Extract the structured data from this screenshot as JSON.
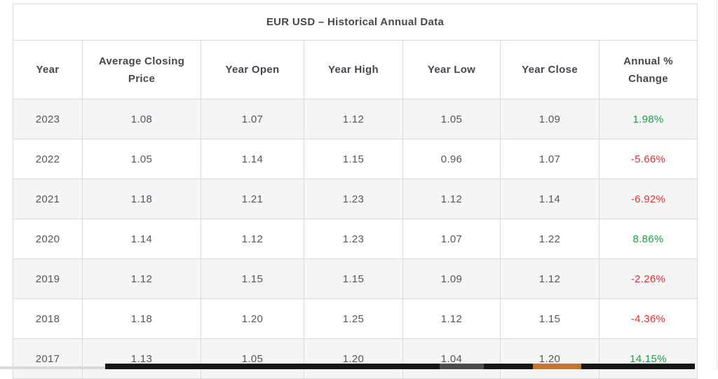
{
  "colors": {
    "positive": "#1e9e44",
    "negative": "#e03434",
    "header_text": "#47484d",
    "cell_text": "#56575c",
    "border": "#dadada",
    "row_shade": "#f5f5f6",
    "bar_black": "#161616",
    "bar_gray": "#4b4b4b",
    "bar_orange": "#c0762c",
    "bar_light": "#d9d9d9"
  },
  "table": {
    "title": "EUR USD – Historical Annual Data",
    "headers": [
      "Year",
      "Average Closing Price",
      "Year Open",
      "Year High",
      "Year Low",
      "Year Close",
      "Annual % Change"
    ],
    "rows": [
      {
        "year": "2023",
        "cells": [
          "1.08",
          "1.07",
          "1.12",
          "1.05",
          "1.09"
        ],
        "change": "1.98%",
        "trend": "up"
      },
      {
        "year": "2022",
        "cells": [
          "1.05",
          "1.14",
          "1.15",
          "0.96",
          "1.07"
        ],
        "change": "-5.66%",
        "trend": "down"
      },
      {
        "year": "2021",
        "cells": [
          "1.18",
          "1.21",
          "1.23",
          "1.12",
          "1.14"
        ],
        "change": "-6.92%",
        "trend": "down"
      },
      {
        "year": "2020",
        "cells": [
          "1.14",
          "1.12",
          "1.23",
          "1.07",
          "1.22"
        ],
        "change": "8.86%",
        "trend": "up"
      },
      {
        "year": "2019",
        "cells": [
          "1.12",
          "1.15",
          "1.15",
          "1.09",
          "1.12"
        ],
        "change": "-2.26%",
        "trend": "down"
      },
      {
        "year": "2018",
        "cells": [
          "1.18",
          "1.20",
          "1.25",
          "1.12",
          "1.15"
        ],
        "change": "-4.36%",
        "trend": "down"
      },
      {
        "year": "2017",
        "cells": [
          "1.13",
          "1.05",
          "1.20",
          "1.04",
          "1.20"
        ],
        "change": "14.15%",
        "trend": "up"
      }
    ]
  },
  "chart_data": {
    "type": "table",
    "title": "EUR USD – Historical Annual Data",
    "columns": [
      "Year",
      "Average Closing Price",
      "Year Open",
      "Year High",
      "Year Low",
      "Year Close",
      "Annual % Change"
    ],
    "rows": [
      [
        "2023",
        1.08,
        1.07,
        1.12,
        1.05,
        1.09,
        "1.98%"
      ],
      [
        "2022",
        1.05,
        1.14,
        1.15,
        0.96,
        1.07,
        "-5.66%"
      ],
      [
        "2021",
        1.18,
        1.21,
        1.23,
        1.12,
        1.14,
        "-6.92%"
      ],
      [
        "2020",
        1.14,
        1.12,
        1.23,
        1.07,
        1.22,
        "8.86%"
      ],
      [
        "2019",
        1.12,
        1.15,
        1.15,
        1.09,
        1.12,
        "-2.26%"
      ],
      [
        "2018",
        1.18,
        1.2,
        1.25,
        1.12,
        1.15,
        "-4.36%"
      ],
      [
        "2017",
        1.13,
        1.05,
        1.2,
        1.04,
        1.2,
        "14.15%"
      ]
    ],
    "layout_hints": {
      "positive_change_color": "#1e9e44",
      "negative_change_color": "#e03434",
      "alternating_row_shading": true,
      "shaded_rows": [
        "2023",
        "2021",
        "2019",
        "2017"
      ]
    }
  }
}
